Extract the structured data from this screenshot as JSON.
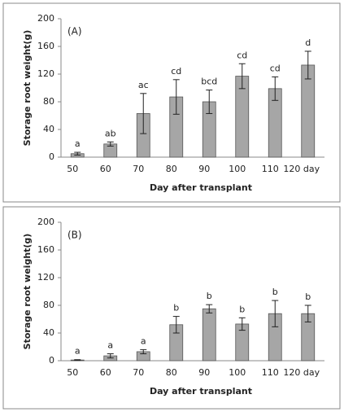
{
  "chart_data": [
    {
      "type": "bar",
      "annotation": "(A)",
      "ylabel": "Storage root weight(g)",
      "xlabel": "Day after transplant",
      "categories": [
        "50",
        "60",
        "70",
        "80",
        "90",
        "100",
        "110",
        "120 day"
      ],
      "values": [
        5,
        19,
        63,
        87,
        80,
        117,
        99,
        133
      ],
      "errors": [
        2,
        3,
        29,
        25,
        17,
        18,
        17,
        20
      ],
      "letters": [
        "a",
        "ab",
        "ac",
        "cd",
        "bcd",
        "cd",
        "cd",
        "d"
      ],
      "color": "#a6a6a6",
      "ylim": [
        0,
        200
      ],
      "yticks": [
        0,
        40,
        80,
        120,
        160,
        200
      ]
    },
    {
      "type": "bar",
      "annotation": "(B)",
      "ylabel": "Storage root weight(g)",
      "xlabel": "Day after transplant",
      "categories": [
        "50",
        "60",
        "70",
        "80",
        "90",
        "100",
        "110",
        "120 day"
      ],
      "values": [
        1,
        7,
        13,
        52,
        75,
        53,
        68,
        68
      ],
      "errors": [
        0.5,
        3,
        3,
        12,
        6,
        9,
        19,
        12
      ],
      "letters": [
        "a",
        "a",
        "a",
        "b",
        "b",
        "b",
        "b",
        "b"
      ],
      "color": "#a6a6a6",
      "ylim": [
        0,
        200
      ],
      "yticks": [
        0,
        40,
        80,
        120,
        160,
        200
      ]
    }
  ]
}
